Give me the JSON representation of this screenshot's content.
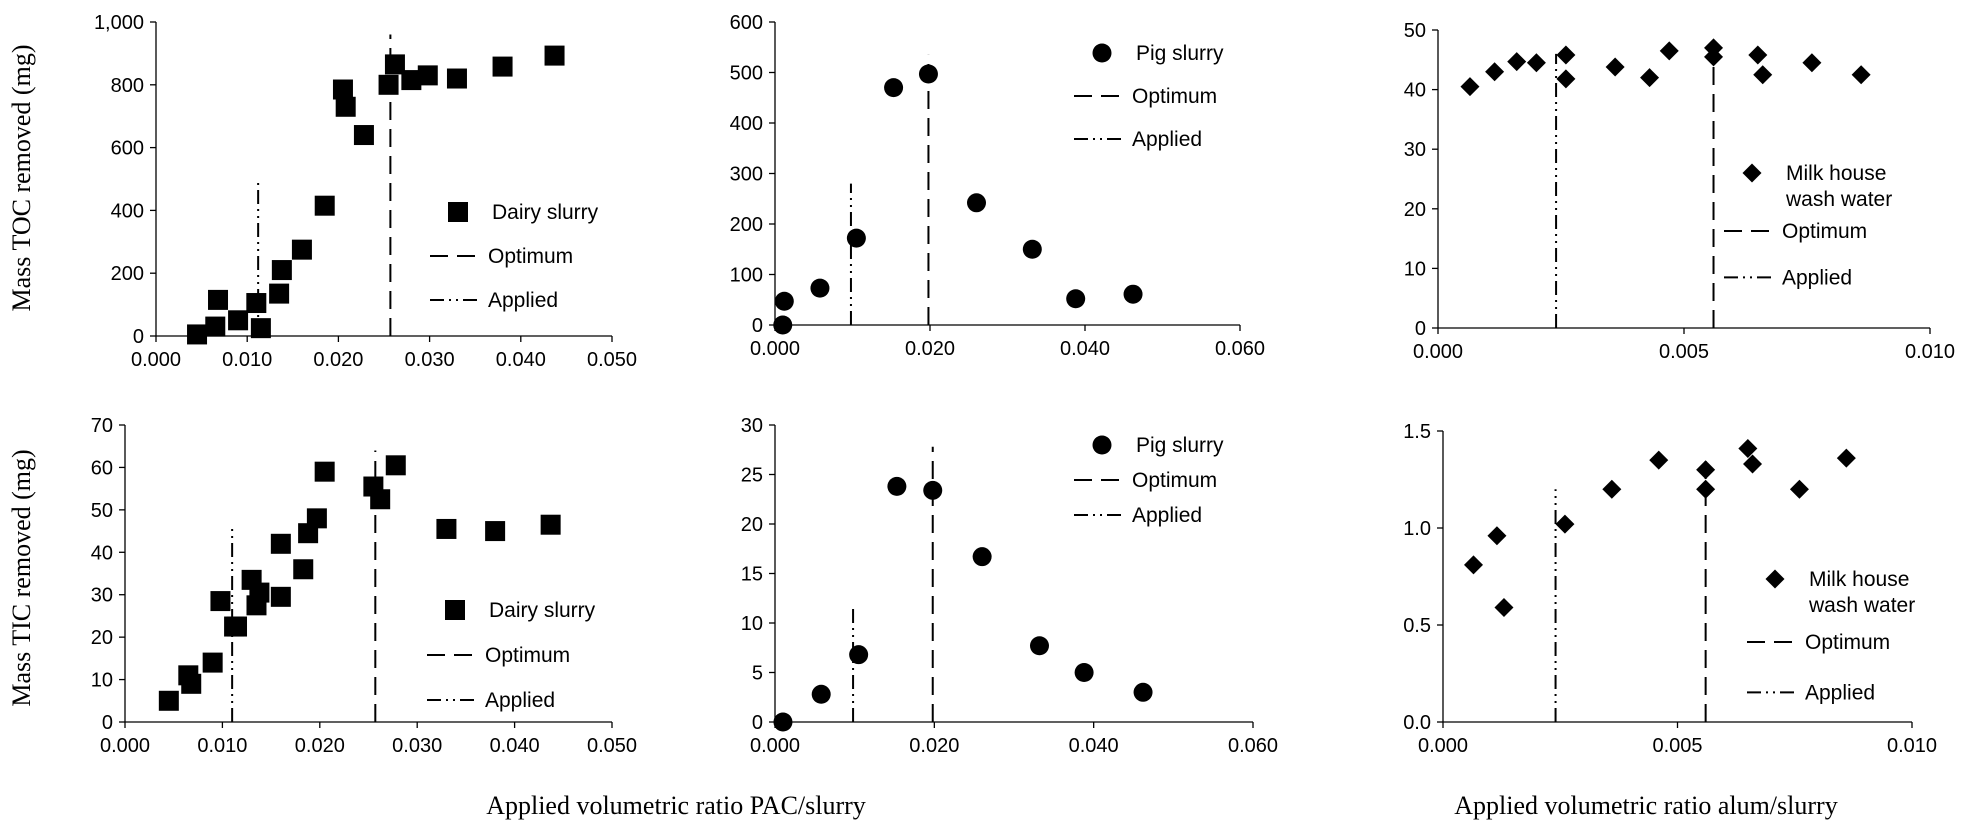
{
  "figure": {
    "row_ylabels": [
      "Mass TOC removed (mg)",
      "Mass TIC removed (mg)"
    ],
    "col_xlabels": [
      {
        "text": "Applied volumetric ratio PAC/slurry"
      },
      {
        "text": "Applied volumetric ratio alum/slurry"
      }
    ]
  },
  "chart_data": [
    {
      "type": "scatter",
      "row": 0,
      "col": 0,
      "marker": "square",
      "xlim": [
        0,
        0.05
      ],
      "ylim": [
        0,
        1000
      ],
      "xticks": [
        "0.000",
        "0.010",
        "0.020",
        "0.030",
        "0.040",
        "0.050"
      ],
      "yticks": [
        "0",
        "200",
        "400",
        "600",
        "800",
        "1,000"
      ],
      "series": [
        {
          "name": "Dairy slurry",
          "points": [
            [
              0.0045,
              5
            ],
            [
              0.0065,
              30
            ],
            [
              0.0068,
              115
            ],
            [
              0.009,
              50
            ],
            [
              0.011,
              105
            ],
            [
              0.0115,
              25
            ],
            [
              0.0135,
              135
            ],
            [
              0.0138,
              210
            ],
            [
              0.016,
              275
            ],
            [
              0.0185,
              415
            ],
            [
              0.0205,
              785
            ],
            [
              0.0208,
              730
            ],
            [
              0.0228,
              640
            ],
            [
              0.0255,
              800
            ],
            [
              0.0262,
              865
            ],
            [
              0.028,
              815
            ],
            [
              0.0298,
              830
            ],
            [
              0.033,
              820
            ],
            [
              0.038,
              858
            ],
            [
              0.0437,
              893
            ]
          ]
        }
      ],
      "lines": [
        {
          "name": "Optimum",
          "style": "dash",
          "x": 0.0257,
          "y": [
            0,
            960
          ]
        },
        {
          "name": "Applied",
          "style": "dashdotdot",
          "x": 0.0112,
          "y": [
            0,
            500
          ]
        }
      ],
      "legend": [
        "Dairy slurry",
        "Optimum",
        "Applied"
      ]
    },
    {
      "type": "scatter",
      "row": 0,
      "col": 1,
      "marker": "circle",
      "xlim": [
        0,
        0.06
      ],
      "ylim": [
        0,
        600
      ],
      "xticks": [
        "0.000",
        "0.020",
        "0.040",
        "0.060"
      ],
      "yticks": [
        "0",
        "100",
        "200",
        "300",
        "400",
        "500",
        "600"
      ],
      "series": [
        {
          "name": "Pig slurry",
          "points": [
            [
              0.001,
              0
            ],
            [
              0.0012,
              47
            ],
            [
              0.0058,
              73
            ],
            [
              0.0105,
              172
            ],
            [
              0.0153,
              470
            ],
            [
              0.0198,
              497
            ],
            [
              0.026,
              242
            ],
            [
              0.0332,
              150
            ],
            [
              0.0388,
              52
            ],
            [
              0.0462,
              61
            ]
          ]
        }
      ],
      "lines": [
        {
          "name": "Optimum",
          "style": "dash",
          "x": 0.0198,
          "y": [
            0,
            535
          ]
        },
        {
          "name": "Applied",
          "style": "dashdotdot",
          "x": 0.0098,
          "y": [
            0,
            280
          ]
        }
      ],
      "legend": [
        "Pig slurry",
        "Optimum",
        "Applied"
      ]
    },
    {
      "type": "scatter",
      "row": 0,
      "col": 2,
      "marker": "diamond",
      "xlim": [
        0,
        0.01
      ],
      "ylim": [
        0,
        50
      ],
      "xticks": [
        "0.000",
        "0.005",
        "0.010"
      ],
      "yticks": [
        "0",
        "10",
        "20",
        "30",
        "40",
        "50"
      ],
      "series": [
        {
          "name": "Milk house wash water",
          "points": [
            [
              0.00065,
              40.5
            ],
            [
              0.00115,
              43
            ],
            [
              0.0016,
              44.7
            ],
            [
              0.002,
              44.5
            ],
            [
              0.0026,
              41.8
            ],
            [
              0.0026,
              45.8
            ],
            [
              0.0036,
              43.8
            ],
            [
              0.0043,
              42
            ],
            [
              0.0047,
              46.5
            ],
            [
              0.0056,
              45.5
            ],
            [
              0.0056,
              47
            ],
            [
              0.0065,
              45.8
            ],
            [
              0.0066,
              42.5
            ],
            [
              0.0076,
              44.5
            ],
            [
              0.0086,
              42.5
            ]
          ]
        }
      ],
      "lines": [
        {
          "name": "Optimum",
          "style": "dash",
          "x": 0.0056,
          "y": [
            0,
            47
          ]
        },
        {
          "name": "Applied",
          "style": "dashdotdot",
          "x": 0.0024,
          "y": [
            0,
            46
          ]
        }
      ],
      "legend": [
        "Milk house",
        "wash water",
        "Optimum",
        "Applied"
      ]
    },
    {
      "type": "scatter",
      "row": 1,
      "col": 0,
      "marker": "square",
      "xlim": [
        0,
        0.05
      ],
      "ylim": [
        0,
        70
      ],
      "xticks": [
        "0.000",
        "0.010",
        "0.020",
        "0.030",
        "0.040",
        "0.050"
      ],
      "yticks": [
        "0",
        "10",
        "20",
        "30",
        "40",
        "50",
        "60",
        "70"
      ],
      "series": [
        {
          "name": "Dairy slurry",
          "points": [
            [
              0.0045,
              5
            ],
            [
              0.0065,
              11
            ],
            [
              0.0068,
              9
            ],
            [
              0.009,
              14
            ],
            [
              0.0098,
              28.5
            ],
            [
              0.0112,
              22.5
            ],
            [
              0.0115,
              22.5
            ],
            [
              0.013,
              33.5
            ],
            [
              0.0135,
              27.5
            ],
            [
              0.0138,
              30.5
            ],
            [
              0.016,
              42
            ],
            [
              0.016,
              29.5
            ],
            [
              0.0183,
              36
            ],
            [
              0.0188,
              44.5
            ],
            [
              0.0197,
              48
            ],
            [
              0.0205,
              59
            ],
            [
              0.0255,
              55.5
            ],
            [
              0.0262,
              52.5
            ],
            [
              0.0278,
              60.5
            ],
            [
              0.033,
              45.5
            ],
            [
              0.038,
              45
            ],
            [
              0.0437,
              46.5
            ]
          ]
        }
      ],
      "lines": [
        {
          "name": "Optimum",
          "style": "dash",
          "x": 0.0257,
          "y": [
            0,
            64
          ]
        },
        {
          "name": "Applied",
          "style": "dashdotdot",
          "x": 0.011,
          "y": [
            0,
            45.5
          ]
        }
      ],
      "legend": [
        "Dairy slurry",
        "Optimum",
        "Applied"
      ]
    },
    {
      "type": "scatter",
      "row": 1,
      "col": 1,
      "marker": "circle",
      "xlim": [
        0,
        0.06
      ],
      "ylim": [
        0,
        30
      ],
      "xticks": [
        "0.000",
        "0.020",
        "0.040",
        "0.060"
      ],
      "yticks": [
        "0",
        "5",
        "10",
        "15",
        "20",
        "25",
        "30"
      ],
      "series": [
        {
          "name": "Pig slurry",
          "points": [
            [
              0.001,
              0
            ],
            [
              0.0058,
              2.8
            ],
            [
              0.0105,
              6.8
            ],
            [
              0.0153,
              23.8
            ],
            [
              0.0198,
              23.4
            ],
            [
              0.026,
              16.7
            ],
            [
              0.0332,
              7.7
            ],
            [
              0.0388,
              5
            ],
            [
              0.0462,
              3
            ]
          ]
        }
      ],
      "lines": [
        {
          "name": "Optimum",
          "style": "dash",
          "x": 0.0198,
          "y": [
            0,
            27.8
          ]
        },
        {
          "name": "Applied",
          "style": "dashdotdot",
          "x": 0.0098,
          "y": [
            0,
            11.5
          ]
        }
      ],
      "legend": [
        "Pig slurry",
        "Optimum",
        "Applied"
      ]
    },
    {
      "type": "scatter",
      "row": 1,
      "col": 2,
      "marker": "diamond",
      "xlim": [
        0,
        0.01
      ],
      "ylim": [
        0,
        1.5
      ],
      "xticks": [
        "0.000",
        "0.005",
        "0.010"
      ],
      "yticks": [
        "0.0",
        "0.5",
        "1.0",
        "1.5"
      ],
      "series": [
        {
          "name": "Milk house wash water",
          "points": [
            [
              0.00065,
              0.81
            ],
            [
              0.00115,
              0.96
            ],
            [
              0.0013,
              0.59
            ],
            [
              0.0026,
              1.02
            ],
            [
              0.0036,
              1.2
            ],
            [
              0.0046,
              1.35
            ],
            [
              0.0056,
              1.3
            ],
            [
              0.0056,
              1.2
            ],
            [
              0.0065,
              1.41
            ],
            [
              0.0066,
              1.33
            ],
            [
              0.0076,
              1.2
            ],
            [
              0.0086,
              1.36
            ]
          ]
        }
      ],
      "lines": [
        {
          "name": "Optimum",
          "style": "dash",
          "x": 0.0056,
          "y": [
            0,
            1.38
          ]
        },
        {
          "name": "Applied",
          "style": "dashdotdot",
          "x": 0.0024,
          "y": [
            0,
            1.2
          ]
        }
      ],
      "legend": [
        "Milk house",
        "wash water",
        "Optimum",
        "Applied"
      ]
    }
  ]
}
